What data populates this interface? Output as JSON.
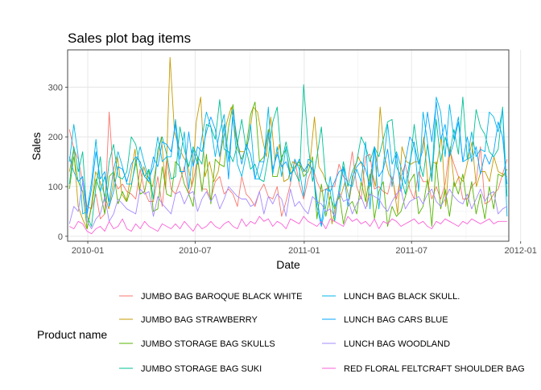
{
  "chart_data": {
    "type": "line",
    "title": "Sales plot bag items",
    "xlabel": "Date",
    "ylabel": "Sales",
    "x_start": "2009-12-01",
    "x_end": "2011-12-09",
    "xlim": [
      "2009-11-28",
      "2011-12-12"
    ],
    "ylim": [
      -10,
      375
    ],
    "x_ticks": [
      {
        "date": "2010-01-01",
        "label": "2010-01"
      },
      {
        "date": "2010-07-01",
        "label": "2010-07"
      },
      {
        "date": "2011-01-01",
        "label": "2011-01"
      },
      {
        "date": "2011-07-01",
        "label": "2011-07"
      },
      {
        "date": "2012-01-01",
        "label": "2012-01"
      }
    ],
    "y_ticks": [
      0,
      100,
      200,
      300
    ],
    "grid": true,
    "legend_title": "Product name",
    "legend_position": "bottom",
    "series": [
      {
        "name": "JUMBO  BAG BAROQUE BLACK WHITE",
        "color": "#F8766D",
        "values": [
          215,
          175,
          155,
          110,
          60,
          55,
          85,
          35,
          45,
          250,
          115,
          95,
          105,
          90,
          85,
          75,
          135,
          90,
          70,
          70,
          120,
          60,
          155,
          95,
          85,
          110,
          140,
          85,
          110,
          155,
          95,
          95,
          75,
          110,
          120,
          85,
          95,
          85,
          60,
          120,
          85,
          75,
          60,
          90,
          105,
          80,
          75,
          100,
          40,
          70,
          105,
          155,
          105,
          75,
          115,
          140,
          110,
          90,
          95,
          100,
          100,
          145,
          120,
          110,
          170,
          100,
          75,
          160,
          165,
          95,
          100,
          90,
          85,
          120,
          75,
          120,
          145,
          95,
          75,
          130,
          110,
          110,
          75,
          100,
          75,
          105,
          175,
          145,
          120,
          75,
          75,
          100,
          110,
          180,
          65,
          70,
          85,
          95,
          125,
          155
        ]
      },
      {
        "name": "JUMBO BAG STRAWBERRY",
        "color": "#C49A00",
        "values": [
          130,
          175,
          60,
          35,
          15,
          60,
          130,
          110,
          85,
          55,
          105,
          160,
          85,
          70,
          120,
          175,
          90,
          140,
          110,
          100,
          150,
          200,
          95,
          360,
          210,
          180,
          160,
          145,
          100,
          230,
          280,
          120,
          150,
          110,
          130,
          190,
          230,
          260,
          200,
          170,
          170,
          195,
          260,
          250,
          200,
          160,
          240,
          150,
          185,
          110,
          115,
          150,
          145,
          140,
          130,
          150,
          240,
          140,
          125,
          100,
          25,
          70,
          80,
          110,
          75,
          130,
          160,
          140,
          60,
          135,
          100,
          260,
          160,
          125,
          110,
          45,
          180,
          150,
          145,
          150,
          150,
          200,
          100,
          150,
          145,
          200,
          60,
          180,
          100,
          120,
          110,
          150,
          190,
          100,
          130,
          130,
          110,
          160,
          130,
          125,
          120
        ]
      },
      {
        "name": "JUMBO STORAGE BAG SKULLS",
        "color": "#53B400",
        "values": [
          95,
          160,
          110,
          90,
          15,
          60,
          115,
          90,
          45,
          120,
          130,
          65,
          90,
          70,
          100,
          155,
          85,
          90,
          135,
          50,
          55,
          140,
          85,
          80,
          150,
          140,
          105,
          85,
          60,
          160,
          90,
          165,
          65,
          155,
          145,
          140,
          220,
          265,
          175,
          155,
          180,
          245,
          270,
          150,
          160,
          215,
          120,
          120,
          160,
          175,
          125,
          140,
          150,
          120,
          130,
          160,
          35,
          105,
          40,
          80,
          55,
          90,
          25,
          60,
          70,
          45,
          110,
          70,
          125,
          35,
          90,
          110,
          20,
          60,
          40,
          50,
          80,
          110,
          125,
          45,
          60,
          115,
          20,
          150,
          55,
          95,
          40,
          110,
          85,
          125,
          60,
          110,
          45,
          85,
          35,
          100,
          55,
          125,
          120,
          135
        ]
      },
      {
        "name": "JUMBO STORAGE BAG SUKI",
        "color": "#00C094",
        "values": [
          105,
          180,
          130,
          170,
          40,
          20,
          100,
          160,
          70,
          150,
          185,
          120,
          115,
          130,
          200,
          185,
          140,
          120,
          135,
          75,
          175,
          200,
          165,
          115,
          120,
          220,
          175,
          140,
          180,
          160,
          145,
          225,
          220,
          195,
          275,
          175,
          170,
          150,
          185,
          235,
          175,
          135,
          145,
          115,
          110,
          160,
          230,
          260,
          150,
          190,
          145,
          130,
          110,
          305,
          185,
          110,
          160,
          220,
          110,
          90,
          30,
          95,
          150,
          100,
          130,
          150,
          200,
          180,
          150,
          180,
          160,
          195,
          230,
          235,
          140,
          120,
          85,
          140,
          225,
          155,
          120,
          185,
          110,
          235,
          150,
          200,
          165,
          215,
          165,
          280,
          155,
          160,
          255,
          220,
          205,
          170,
          160,
          175,
          260,
          80
        ]
      },
      {
        "name": "LUNCH BAG  BLACK SKULL.",
        "color": "#00B6EB",
        "values": [
          150,
          225,
          160,
          45,
          50,
          110,
          195,
          90,
          120,
          70,
          135,
          170,
          140,
          105,
          105,
          145,
          180,
          145,
          115,
          140,
          200,
          150,
          160,
          160,
          235,
          155,
          210,
          95,
          175,
          145,
          200,
          250,
          220,
          160,
          210,
          245,
          150,
          240,
          145,
          120,
          165,
          225,
          115,
          115,
          150,
          260,
          125,
          180,
          120,
          180,
          110,
          155,
          135,
          80,
          155,
          150,
          60,
          20,
          60,
          120,
          60,
          80,
          140,
          105,
          100,
          135,
          110,
          190,
          55,
          180,
          55,
          140,
          225,
          145,
          170,
          140,
          105,
          150,
          190,
          90,
          250,
          190,
          115,
          280,
          250,
          160,
          265,
          195,
          240,
          150,
          155,
          210,
          160,
          175,
          170,
          250,
          240,
          210,
          255,
          40
        ]
      },
      {
        "name": "LUNCH BAG CARS BLUE",
        "color": "#06A4FF",
        "values": [
          160,
          130,
          110,
          120,
          45,
          95,
          170,
          115,
          130,
          60,
          90,
          140,
          135,
          110,
          145,
          160,
          150,
          120,
          110,
          160,
          140,
          190,
          185,
          170,
          225,
          130,
          130,
          210,
          140,
          180,
          170,
          210,
          240,
          215,
          160,
          225,
          115,
          255,
          190,
          145,
          185,
          165,
          115,
          150,
          150,
          210,
          135,
          165,
          140,
          150,
          125,
          135,
          155,
          130,
          145,
          135,
          75,
          25,
          95,
          90,
          110,
          130,
          135,
          60,
          120,
          140,
          150,
          135,
          100,
          180,
          120,
          135,
          175,
          100,
          165,
          90,
          150,
          200,
          185,
          145,
          175,
          250,
          190,
          270,
          195,
          225,
          160,
          190,
          230,
          150,
          200,
          150,
          180,
          125,
          165,
          145,
          170,
          230,
          200,
          105
        ]
      },
      {
        "name": "LUNCH BAG WOODLAND",
        "color": "#A58AFF",
        "values": [
          25,
          60,
          50,
          110,
          30,
          15,
          35,
          45,
          80,
          30,
          45,
          75,
          65,
          55,
          50,
          45,
          95,
          85,
          90,
          40,
          80,
          65,
          55,
          45,
          85,
          90,
          65,
          85,
          90,
          50,
          75,
          90,
          70,
          85,
          55,
          75,
          100,
          90,
          80,
          75,
          75,
          60,
          65,
          90,
          45,
          80,
          65,
          85,
          75,
          40,
          95,
          60,
          70,
          55,
          45,
          80,
          70,
          65,
          50,
          55,
          40,
          90,
          70,
          75,
          45,
          65,
          80,
          55,
          85,
          80,
          75,
          60,
          50,
          70,
          85,
          95,
          55,
          70,
          75,
          80,
          65,
          85,
          95,
          70,
          60,
          75,
          95,
          80,
          70,
          65,
          85,
          55,
          75,
          95,
          70,
          85,
          90,
          45,
          55,
          60
        ]
      },
      {
        "name": "RED FLORAL FELTCRAFT SHOULDER BAG",
        "color": "#FB61D7",
        "values": [
          20,
          15,
          30,
          25,
          10,
          5,
          15,
          20,
          10,
          30,
          15,
          20,
          35,
          15,
          10,
          25,
          15,
          30,
          20,
          15,
          10,
          25,
          20,
          15,
          25,
          15,
          30,
          20,
          10,
          25,
          15,
          20,
          30,
          20,
          15,
          25,
          30,
          20,
          15,
          35,
          20,
          30,
          25,
          40,
          30,
          35,
          20,
          30,
          25,
          15,
          35,
          30,
          25,
          40,
          30,
          25,
          20,
          30,
          15,
          35,
          30,
          25,
          20,
          40,
          30,
          35,
          25,
          30,
          20,
          35,
          15,
          30,
          25,
          35,
          30,
          20,
          25,
          30,
          35,
          25,
          30,
          20,
          15,
          30,
          25,
          35,
          30,
          25,
          20,
          30,
          25,
          35,
          30,
          25,
          30,
          35,
          25,
          30,
          30,
          30
        ]
      }
    ]
  }
}
